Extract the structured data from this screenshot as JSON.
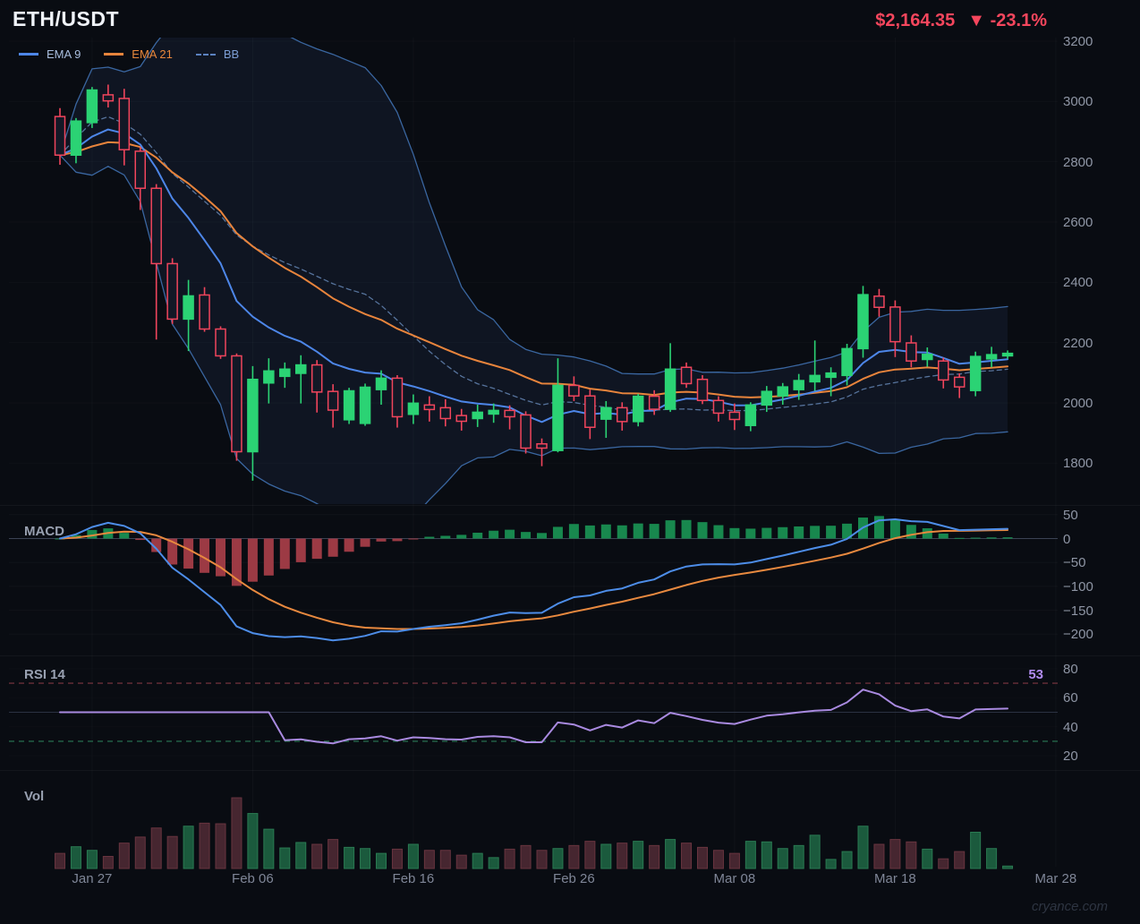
{
  "header": {
    "symbol": "ETH/USDT",
    "price": "$2,164.35",
    "change": "▼ -23.1%"
  },
  "legend": [
    {
      "label": "EMA 9",
      "line_color": "#4d86e8",
      "text_color": "#a9bede",
      "dashed": false
    },
    {
      "label": "EMA 21",
      "line_color": "#e8843c",
      "text_color": "#e8873c",
      "dashed": false
    },
    {
      "label": "BB",
      "line_color": "#5b82c0",
      "text_color": "#7d9fd6",
      "dashed": true
    }
  ],
  "panels": {
    "macd_label": "MACD",
    "rsi_label": "RSI 14",
    "vol_label": "Vol",
    "rsi_value": "53"
  },
  "axes": {
    "price": [
      "3200",
      "3000",
      "2800",
      "2600",
      "2400",
      "2200",
      "2000",
      "1800"
    ],
    "macd": [
      "50",
      "0",
      "−50",
      "−100",
      "−150",
      "−200"
    ],
    "rsi": [
      "80",
      "60",
      "40",
      "20"
    ],
    "dates": [
      "Jan 27",
      "Feb 06",
      "Feb 16",
      "Feb 26",
      "Mar 08",
      "Mar 18",
      "Mar 28"
    ]
  },
  "watermark": "cryance.com",
  "chart_data": {
    "type": "candlestick",
    "symbol": "ETH/USDT",
    "last_price": 2164.35,
    "change_pct": -23.1,
    "indicators": {
      "ema_fast": 9,
      "ema_slow": 21,
      "bb_period": 20,
      "bb_stddev": 2,
      "macd": [
        12,
        26,
        9
      ],
      "rsi_period": 14,
      "rsi_bands": [
        70,
        30
      ]
    },
    "y_axis": {
      "price_ticks": [
        3200,
        3000,
        2800,
        2600,
        2400,
        2200,
        2000,
        1800
      ],
      "macd_ticks": [
        50,
        0,
        -50,
        -100,
        -150,
        -200
      ],
      "rsi_ticks": [
        80,
        60,
        40,
        20
      ]
    },
    "x_tick_dates": [
      "Jan 27",
      "Feb 06",
      "Feb 16",
      "Feb 26",
      "Mar 08",
      "Mar 18",
      "Mar 28"
    ],
    "dates": [
      "Jan 25",
      "Jan 26",
      "Jan 27",
      "Jan 28",
      "Jan 29",
      "Jan 30",
      "Jan 31",
      "Feb 01",
      "Feb 02",
      "Feb 03",
      "Feb 04",
      "Feb 05",
      "Feb 06",
      "Feb 07",
      "Feb 08",
      "Feb 09",
      "Feb 10",
      "Feb 11",
      "Feb 12",
      "Feb 13",
      "Feb 14",
      "Feb 15",
      "Feb 16",
      "Feb 17",
      "Feb 18",
      "Feb 19",
      "Feb 20",
      "Feb 21",
      "Feb 22",
      "Feb 23",
      "Feb 24",
      "Feb 25",
      "Feb 26",
      "Feb 27",
      "Feb 28",
      "Mar 01",
      "Mar 02",
      "Mar 03",
      "Mar 04",
      "Mar 05",
      "Mar 06",
      "Mar 07",
      "Mar 08",
      "Mar 09",
      "Mar 10",
      "Mar 11",
      "Mar 12",
      "Mar 13",
      "Mar 14",
      "Mar 15",
      "Mar 16",
      "Mar 17",
      "Mar 18",
      "Mar 19",
      "Mar 20",
      "Mar 21",
      "Mar 22",
      "Mar 23",
      "Mar 24",
      "Mar 25"
    ],
    "ohlc": [
      [
        2950,
        2978,
        2790,
        2822
      ],
      [
        2822,
        2945,
        2795,
        2935
      ],
      [
        2930,
        3048,
        2912,
        3038
      ],
      [
        3022,
        3056,
        2980,
        3002
      ],
      [
        3010,
        3042,
        2788,
        2840
      ],
      [
        2835,
        2848,
        2640,
        2712
      ],
      [
        2712,
        2726,
        2210,
        2462
      ],
      [
        2462,
        2480,
        2262,
        2278
      ],
      [
        2278,
        2408,
        2172,
        2355
      ],
      [
        2358,
        2384,
        2236,
        2245
      ],
      [
        2245,
        2254,
        2146,
        2156
      ],
      [
        2156,
        2164,
        1808,
        1838
      ],
      [
        1838,
        2122,
        1742,
        2078
      ],
      [
        2066,
        2148,
        1998,
        2106
      ],
      [
        2088,
        2134,
        2050,
        2112
      ],
      [
        2098,
        2158,
        1998,
        2126
      ],
      [
        2126,
        2142,
        1968,
        2036
      ],
      [
        2038,
        2062,
        1918,
        1976
      ],
      [
        1944,
        2050,
        1930,
        2040
      ],
      [
        1932,
        2064,
        1924,
        2052
      ],
      [
        2044,
        2108,
        1994,
        2082
      ],
      [
        2082,
        2092,
        1918,
        1954
      ],
      [
        1962,
        2028,
        1930,
        1999
      ],
      [
        1993,
        2022,
        1938,
        1978
      ],
      [
        1984,
        2012,
        1922,
        1948
      ],
      [
        1958,
        1980,
        1908,
        1939
      ],
      [
        1948,
        1994,
        1920,
        1969
      ],
      [
        1963,
        1998,
        1934,
        1975
      ],
      [
        1975,
        1992,
        1912,
        1954
      ],
      [
        1960,
        1972,
        1832,
        1850
      ],
      [
        1864,
        1882,
        1790,
        1850
      ],
      [
        1842,
        2148,
        1836,
        2058
      ],
      [
        2058,
        2088,
        2006,
        2023
      ],
      [
        2023,
        2044,
        1880,
        1919
      ],
      [
        1946,
        2006,
        1884,
        1984
      ],
      [
        1984,
        2002,
        1908,
        1938
      ],
      [
        1938,
        2030,
        1922,
        2022
      ],
      [
        2022,
        2042,
        1960,
        1979
      ],
      [
        1979,
        2198,
        1970,
        2112
      ],
      [
        2118,
        2134,
        2050,
        2064
      ],
      [
        2078,
        2092,
        1996,
        2008
      ],
      [
        2008,
        2022,
        1938,
        1966
      ],
      [
        1969,
        1998,
        1910,
        1945
      ],
      [
        1925,
        2002,
        1906,
        1993
      ],
      [
        1993,
        2056,
        1970,
        2038
      ],
      [
        2023,
        2066,
        1994,
        2053
      ],
      [
        2044,
        2096,
        2010,
        2074
      ],
      [
        2070,
        2207,
        2040,
        2091
      ],
      [
        2085,
        2118,
        2022,
        2099
      ],
      [
        2091,
        2196,
        2058,
        2180
      ],
      [
        2180,
        2388,
        2150,
        2359
      ],
      [
        2354,
        2378,
        2286,
        2317
      ],
      [
        2318,
        2340,
        2152,
        2203
      ],
      [
        2199,
        2224,
        2118,
        2139
      ],
      [
        2144,
        2184,
        2120,
        2161
      ],
      [
        2139,
        2150,
        2048,
        2076
      ],
      [
        2085,
        2098,
        2016,
        2053
      ],
      [
        2041,
        2170,
        2022,
        2154
      ],
      [
        2146,
        2186,
        2118,
        2160
      ],
      [
        2156,
        2174,
        2146,
        2164.35
      ]
    ],
    "volume": [
      25,
      36,
      30,
      20,
      42,
      52,
      67,
      53,
      70,
      75,
      74,
      117,
      91,
      65,
      34,
      43,
      40,
      48,
      35,
      33,
      25,
      32,
      40,
      30,
      30,
      22,
      25,
      18,
      32,
      38,
      30,
      33,
      38,
      45,
      40,
      42,
      45,
      38,
      48,
      42,
      35,
      30,
      25,
      45,
      44,
      33,
      38,
      55,
      15,
      28,
      70,
      40,
      48,
      44,
      32,
      16,
      28,
      60,
      33,
      4
    ],
    "colors": {
      "up": "#2bd374",
      "down": "#f0455c",
      "down_fill": "#131826",
      "ema9": "#4d86e8",
      "ema21": "#e8843c",
      "bb_line": "#3a66a0",
      "bb_mid": "#56739c",
      "bb_fill": "rgba(74,122,196,0.09)",
      "macd_line": "#4d8de8",
      "macd_signal": "#e8893f",
      "hist_up": "#18884e",
      "hist_down": "#9c3a44",
      "rsi_line": "#a98ae0",
      "rsi_upper": "#7e3742",
      "rsi_lower": "#2a7a55",
      "vol_up": "#1b5a3d",
      "vol_up_edge": "#2a7a52",
      "vol_down": "#462630",
      "vol_down_edge": "#68343f",
      "price_change": "#f6465d",
      "background": "#090c12"
    }
  }
}
